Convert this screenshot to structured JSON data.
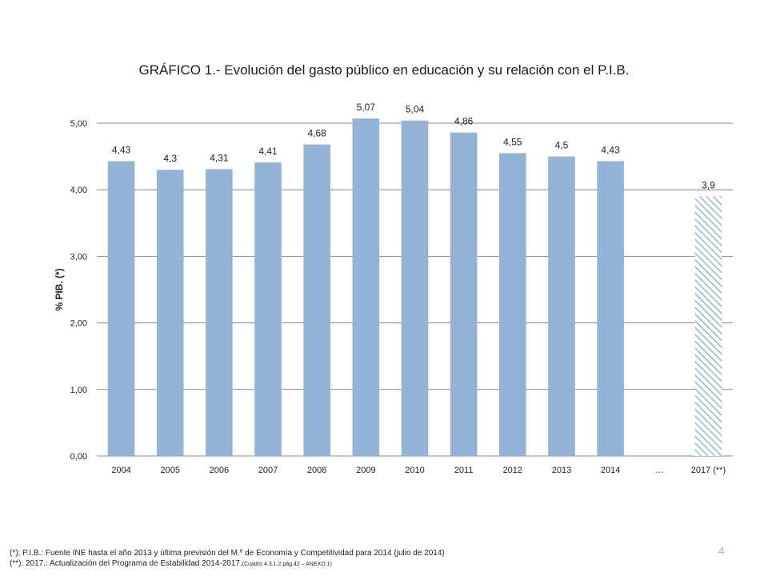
{
  "chart_data": {
    "type": "bar",
    "title": "GRÁFICO 1.- Evolución del gasto público en educación y su relación con el P.I.B.",
    "ylabel": "% PIB. (*)",
    "xlabel": "",
    "ylim": [
      0,
      5
    ],
    "yticks": [
      0,
      1,
      2,
      3,
      4,
      5
    ],
    "ytick_labels": [
      "0,00",
      "1,00",
      "2,00",
      "3,00",
      "4,00",
      "5,00"
    ],
    "grid": true,
    "categories": [
      "2004",
      "2005",
      "2006",
      "2007",
      "2008",
      "2009",
      "2010",
      "2011",
      "2012",
      "2013",
      "2014",
      "…",
      "2017 (**)"
    ],
    "values": [
      4.43,
      4.3,
      4.31,
      4.41,
      4.68,
      5.07,
      5.04,
      4.86,
      4.55,
      4.5,
      4.43,
      null,
      3.9
    ],
    "data_labels": [
      "4,43",
      "4,3",
      "4,31",
      "4,41",
      "4,68",
      "5,07",
      "5,04",
      "4,86",
      "4,55",
      "4,5",
      "4,43",
      "",
      "3,9"
    ],
    "hatched": [
      false,
      false,
      false,
      false,
      false,
      false,
      false,
      false,
      false,
      false,
      false,
      false,
      true
    ],
    "bar_color": "#95b3d7",
    "hatch_color": "#95b3d7"
  },
  "footnotes": {
    "line1": "(*); P.I.B.: Fuente INE hasta el año 2013 y última previsión del M.º de Economía y Competitividad para 2014 (julio de 2014)",
    "line2_main": "(**): 2017.: Actualización del Programa de Estabilidad 2014-2017.",
    "line2_small": "(Cuadro 4.3.1.2 pág.42 – ANEXO 1)"
  },
  "page_number": "4"
}
